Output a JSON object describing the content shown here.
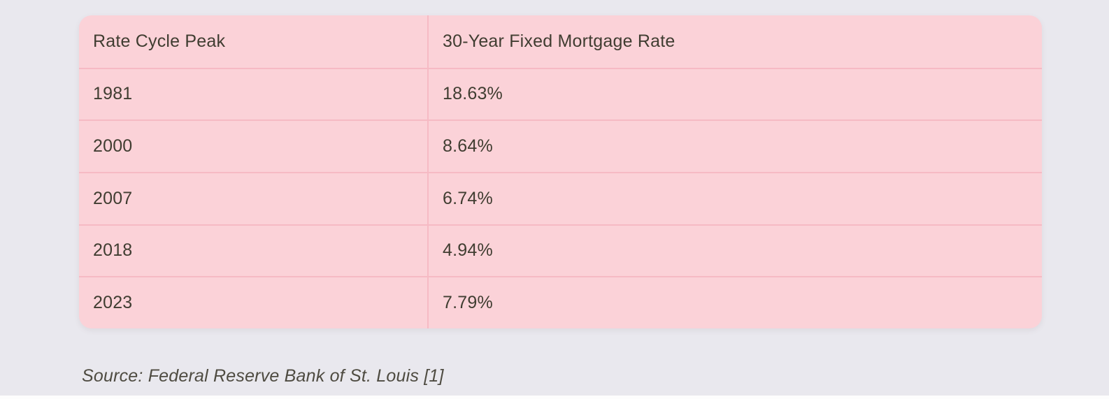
{
  "page": {
    "background_color": "#e9e8ee"
  },
  "table": {
    "background_color": "#fbd2d8",
    "divider_color": "#f6bac4",
    "text_color": "#403d31",
    "columns": [
      "Rate Cycle Peak",
      "30-Year Fixed Mortgage Rate"
    ],
    "rows": [
      [
        "1981",
        "18.63%"
      ],
      [
        "2000",
        "8.64%"
      ],
      [
        "2007",
        "6.74%"
      ],
      [
        "2018",
        "4.94%"
      ],
      [
        "2023",
        "7.79%"
      ]
    ]
  },
  "source": {
    "text": "Source: Federal Reserve Bank of St. Louis [1]"
  },
  "chart_data": {
    "type": "table",
    "columns": [
      "Rate Cycle Peak",
      "30-Year Fixed Mortgage Rate"
    ],
    "categories": [
      "1981",
      "2000",
      "2007",
      "2018",
      "2023"
    ],
    "values": [
      18.63,
      8.64,
      6.74,
      4.94,
      7.79
    ],
    "units": "percent",
    "source": "Source: Federal Reserve Bank of St. Louis [1]"
  }
}
